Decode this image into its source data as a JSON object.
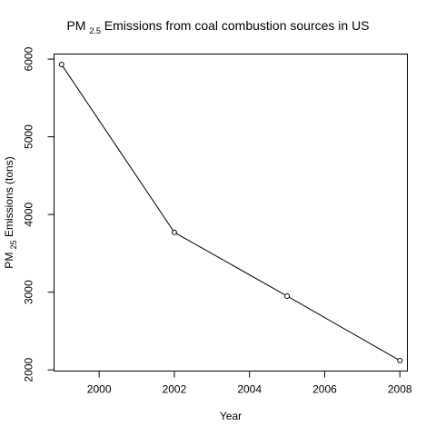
{
  "chart_data": {
    "type": "line",
    "title_parts": [
      "PM",
      "2.5",
      " Emissions from coal combustion sources in US"
    ],
    "xlabel": "Year",
    "ylabel_parts": [
      "PM",
      "25",
      " Emissions (tons)"
    ],
    "x": [
      1999,
      2002,
      2005,
      2008
    ],
    "values": [
      5930,
      3770,
      2950,
      2120
    ],
    "xlim": [
      1998.8,
      2008.2
    ],
    "ylim": [
      1985,
      6065
    ],
    "xticks": [
      2000,
      2002,
      2004,
      2006,
      2008
    ],
    "yticks": [
      2000,
      3000,
      4000,
      5000,
      6000
    ],
    "grid": false,
    "marker": "open-circle",
    "line_color": "#000000",
    "background": "#ffffff"
  }
}
